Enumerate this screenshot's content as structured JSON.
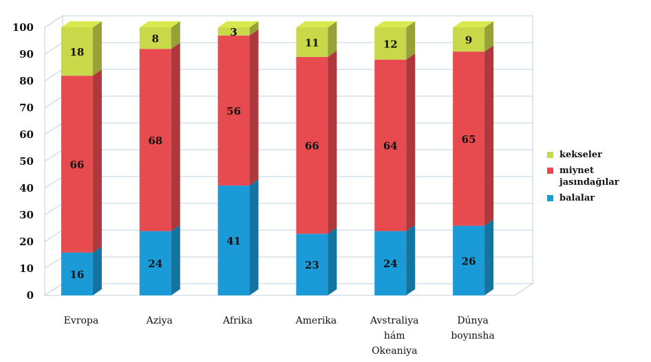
{
  "chart_data": {
    "type": "bar",
    "stacked": true,
    "style": "3d-column",
    "categories": [
      [
        "Evropa"
      ],
      [
        "Aziya"
      ],
      [
        "Afrika"
      ],
      [
        "Amerika"
      ],
      [
        "Avstraliya",
        "hám",
        "Okeaniya"
      ],
      [
        "Dúnya",
        "boyınsha"
      ]
    ],
    "series": [
      {
        "name": "balalar",
        "color": "#1a9bd7",
        "values": [
          16,
          24,
          41,
          23,
          24,
          26
        ]
      },
      {
        "name": "miynet jasındağılar",
        "legend_lines": [
          "miynet",
          "jasındağılar"
        ],
        "color": "#e84b4f",
        "values": [
          66,
          68,
          56,
          66,
          64,
          65
        ]
      },
      {
        "name": "kekseler",
        "color": "#c8d849",
        "values": [
          18,
          8,
          3,
          11,
          12,
          9
        ]
      }
    ],
    "ylim": [
      0,
      100
    ],
    "yticks": [
      "0",
      "10",
      "20",
      "30",
      "40",
      "50",
      "60",
      "70",
      "80",
      "90",
      "100"
    ],
    "grid": true,
    "legend_position": "right"
  }
}
